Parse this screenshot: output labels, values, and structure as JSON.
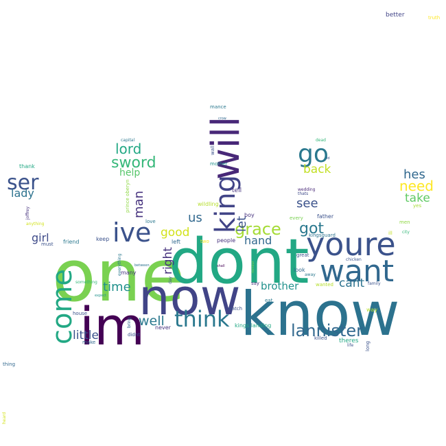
{
  "words": [
    {
      "text": "one",
      "color": "#7ad151"
    },
    {
      "text": "dont",
      "color": "#22a884"
    },
    {
      "text": "know",
      "color": "#2c728e"
    },
    {
      "text": "now",
      "color": "#414487"
    },
    {
      "text": "im",
      "color": "#440154"
    },
    {
      "text": "youre",
      "color": "#3b528b"
    },
    {
      "text": "want",
      "color": "#31688e"
    },
    {
      "text": "will",
      "color": "#482878"
    },
    {
      "text": "king",
      "color": "#414487"
    },
    {
      "text": "go",
      "color": "#2a788e"
    },
    {
      "text": "ive",
      "color": "#3b528b"
    },
    {
      "text": "come",
      "color": "#22a884"
    },
    {
      "text": "think",
      "color": "#2a788e"
    },
    {
      "text": "ser",
      "color": "#3b528b"
    },
    {
      "text": "lannister",
      "color": "#31688e"
    },
    {
      "text": "grace",
      "color": "#a5db36"
    },
    {
      "text": "got",
      "color": "#2a788e"
    },
    {
      "text": "need",
      "color": "#fde725"
    },
    {
      "text": "sword",
      "color": "#35b779"
    },
    {
      "text": "lord",
      "color": "#22a884"
    },
    {
      "text": "hes",
      "color": "#31688e"
    },
    {
      "text": "take",
      "color": "#5ec962"
    },
    {
      "text": "see",
      "color": "#3b528b"
    },
    {
      "text": "back",
      "color": "#c2df23"
    },
    {
      "text": "man",
      "color": "#46327e"
    },
    {
      "text": "let",
      "color": "#3b528b"
    },
    {
      "text": "right",
      "color": "#46327e"
    },
    {
      "text": "us",
      "color": "#31688e"
    },
    {
      "text": "good",
      "color": "#d2e21b"
    },
    {
      "text": "hand",
      "color": "#31688e"
    },
    {
      "text": "time",
      "color": "#21918c"
    },
    {
      "text": "well",
      "color": "#2a788e"
    },
    {
      "text": "little",
      "color": "#3b528b"
    },
    {
      "text": "brother",
      "color": "#21918c"
    },
    {
      "text": "cant",
      "color": "#2c728e"
    },
    {
      "text": "girl",
      "color": "#3e4a89"
    },
    {
      "text": "lady",
      "color": "#2c728e"
    },
    {
      "text": "help",
      "color": "#54c568"
    },
    {
      "text": "better",
      "color": "#414487"
    },
    {
      "text": "truth",
      "color": "#fde725"
    },
    {
      "text": "mance",
      "color": "#2a788e"
    },
    {
      "text": "crow",
      "color": "#31688e"
    },
    {
      "text": "capital",
      "color": "#2a788e"
    },
    {
      "text": "dead",
      "color": "#35b779"
    },
    {
      "text": "id",
      "color": "#3b528b"
    },
    {
      "text": "wall",
      "color": "#3b528b"
    },
    {
      "text": "mother",
      "color": "#21918c"
    },
    {
      "text": "thank",
      "color": "#22a884"
    },
    {
      "text": "tell",
      "color": "#46327e"
    },
    {
      "text": "wedding",
      "color": "#482878"
    },
    {
      "text": "thats",
      "color": "#3e4a89"
    },
    {
      "text": "prince oberyn",
      "color": "#8fd744"
    },
    {
      "text": "wildling",
      "color": "#b5de2b"
    },
    {
      "text": "boy",
      "color": "#46327e"
    },
    {
      "text": "every",
      "color": "#7ad151"
    },
    {
      "text": "father",
      "color": "#3b528b"
    },
    {
      "text": "yes",
      "color": "#a5db36"
    },
    {
      "text": "men",
      "color": "#8fd744"
    },
    {
      "text": "anything",
      "color": "#d2e21b"
    },
    {
      "text": "love",
      "color": "#2a788e"
    },
    {
      "text": "two",
      "color": "#fde725"
    },
    {
      "text": "people",
      "color": "#46327e"
    },
    {
      "text": "kingsguard",
      "color": "#2c728e"
    },
    {
      "text": "ill",
      "color": "#c2df23"
    },
    {
      "text": "city",
      "color": "#35b779"
    },
    {
      "text": "joffrey",
      "color": "#46327e"
    },
    {
      "text": "must",
      "color": "#3b528b"
    },
    {
      "text": "friend",
      "color": "#2a788e"
    },
    {
      "text": "keep",
      "color": "#3b528b"
    },
    {
      "text": "left",
      "color": "#31688e"
    },
    {
      "text": "great",
      "color": "#3b528b"
    },
    {
      "text": "away",
      "color": "#2a788e"
    },
    {
      "text": "look",
      "color": "#31688e"
    },
    {
      "text": "wanted",
      "color": "#b5de2b"
    },
    {
      "text": "family",
      "color": "#3b528b"
    },
    {
      "text": "everything",
      "color": "#2a788e"
    },
    {
      "text": "between",
      "color": "#2c728e"
    },
    {
      "text": "shall",
      "color": "#440154"
    },
    {
      "text": "honour",
      "color": "#7ad151"
    },
    {
      "text": "chicken",
      "color": "#3b528b"
    },
    {
      "text": "many",
      "color": "#46327e"
    },
    {
      "text": "something",
      "color": "#35b779"
    },
    {
      "text": "expect",
      "color": "#21918c"
    },
    {
      "text": "day",
      "color": "#3b528b"
    },
    {
      "text": "say",
      "color": "#46327e"
    },
    {
      "text": "eat",
      "color": "#2a788e"
    },
    {
      "text": "watch",
      "color": "#3b528b"
    },
    {
      "text": "way",
      "color": "#b5de2b"
    },
    {
      "text": "house",
      "color": "#3b528b"
    },
    {
      "text": "bring",
      "color": "#31688e"
    },
    {
      "text": "didnt",
      "color": "#3b528b"
    },
    {
      "text": "never",
      "color": "#46327e"
    },
    {
      "text": "kings landing",
      "color": "#22a884"
    },
    {
      "text": "killed",
      "color": "#3b528b"
    },
    {
      "text": "theres",
      "color": "#22a884"
    },
    {
      "text": "life",
      "color": "#3b528b"
    },
    {
      "text": "long",
      "color": "#3b528b"
    },
    {
      "text": "make",
      "color": "#31688e"
    },
    {
      "text": "thing",
      "color": "#31688e"
    },
    {
      "text": "heard",
      "color": "#d2e21b"
    }
  ]
}
